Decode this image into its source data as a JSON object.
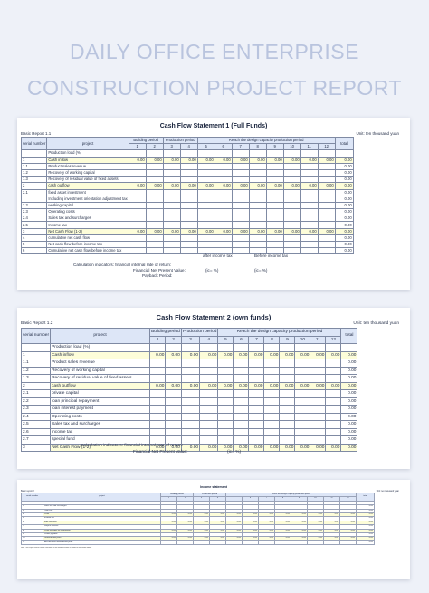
{
  "page": {
    "title_line1": "DAILY OFFICE ENTERPRISE",
    "title_line2": "CONSTRUCTION PROJECT REPORT"
  },
  "sheet1": {
    "title": "Cash Flow Statement 1 (Full Funds)",
    "report_no": "Basic Report 1.1",
    "unit": "Unit: ten thousand yuan",
    "header": {
      "serial": "serial number",
      "project": "project",
      "building": "Building period",
      "production": "Production period",
      "design": "Reach the design capacity production period",
      "total": "total",
      "periods": [
        "1",
        "2",
        "3",
        "4",
        "5",
        "6",
        "7",
        "8",
        "9",
        "10",
        "11",
        "12"
      ]
    },
    "rows": [
      {
        "sn": "",
        "name": "Production load (%)",
        "hl": false,
        "vals": []
      },
      {
        "sn": "1",
        "name": "Cash inflow",
        "hl": true,
        "vals": [
          "0.00",
          "0.00",
          "0.00",
          "0.00",
          "0.00",
          "0.00",
          "0.00",
          "0.00",
          "0.00",
          "0.00",
          "0.00",
          "0.00"
        ],
        "total": "0.00"
      },
      {
        "sn": "1.1",
        "name": "Product sales revenue",
        "hl": false,
        "vals": [],
        "total": "0.00"
      },
      {
        "sn": "1.2",
        "name": "Recovery of working capital",
        "hl": false,
        "vals": [],
        "total": "0.00"
      },
      {
        "sn": "1.3",
        "name": "Recovery of residual value of fixed assets",
        "hl": false,
        "vals": [],
        "total": "0.00"
      },
      {
        "sn": "2",
        "name": "cash outflow",
        "hl": true,
        "vals": [
          "0.00",
          "0.00",
          "0.00",
          "0.00",
          "0.00",
          "0.00",
          "0.00",
          "0.00",
          "0.00",
          "0.00",
          "0.00",
          "0.00"
        ],
        "total": "0.00"
      },
      {
        "sn": "2.1",
        "name": "fixed asset investment",
        "hl": false,
        "vals": [],
        "total": "0.00"
      },
      {
        "sn": "",
        "name": "Including investment orientation adjustment tax",
        "hl": false,
        "vals": [],
        "total": "0.00"
      },
      {
        "sn": "2.2",
        "name": "working capital",
        "hl": false,
        "vals": [],
        "total": "0.00"
      },
      {
        "sn": "2.3",
        "name": "Operating costs",
        "hl": false,
        "vals": [],
        "total": "0.00"
      },
      {
        "sn": "2.4",
        "name": "Sales tax and surcharges",
        "hl": false,
        "vals": [],
        "total": "0.00"
      },
      {
        "sn": "2.5",
        "name": "Income tax",
        "hl": false,
        "vals": [],
        "total": "0.00"
      },
      {
        "sn": "3",
        "name": "Net Cash Flow (1-2)",
        "hl": true,
        "vals": [
          "0.00",
          "0.00",
          "0.00",
          "0.00",
          "0.00",
          "0.00",
          "0.00",
          "0.00",
          "0.00",
          "0.00",
          "0.00",
          "0.00"
        ],
        "total": "0.00"
      },
      {
        "sn": "4",
        "name": "cumulative net cash flow",
        "hl": false,
        "vals": [],
        "total": "0.00"
      },
      {
        "sn": "5",
        "name": "Net cash flow before income tax",
        "hl": false,
        "vals": [],
        "total": "0.00"
      },
      {
        "sn": "6",
        "name": "Cumulative net cash flow before income tax",
        "hl": false,
        "vals": [],
        "total": "0.00"
      }
    ],
    "calc": {
      "after_tax": "after income tax",
      "before_tax": "Before income tax",
      "irr_label": "Calculation indicators: financial internal rate of return:",
      "npv_label": "Financial Net Present Value:",
      "pp_label": "Payback Period:",
      "ic1": "(ic=  %)",
      "ic2": "(ic=  %)"
    }
  },
  "sheet2": {
    "title": "Cash Flow Statement 2 (own funds)",
    "report_no": "Basic Report 1.2",
    "unit": "Unit: ten thousand yuan",
    "header": {
      "serial": "serial number",
      "project": "project",
      "building": "Building period",
      "production": "Production period",
      "design": "Reach the design capacity production period",
      "total": "total",
      "periods": [
        "1",
        "2",
        "3",
        "4",
        "5",
        "6",
        "7",
        "8",
        "9",
        "10",
        "11",
        "12"
      ]
    },
    "rows": [
      {
        "sn": "",
        "name": "Production load (%)",
        "hl": false,
        "vals": []
      },
      {
        "sn": "1",
        "name": "Cash inflow",
        "hl": true,
        "vals": [
          "0.00",
          "0.00",
          "0.00",
          "0.00",
          "0.00",
          "0.00",
          "0.00",
          "0.00",
          "0.00",
          "0.00",
          "0.00",
          "0.00"
        ],
        "total": "0.00"
      },
      {
        "sn": "1.1",
        "name": "Product sales revenue",
        "hl": false,
        "vals": [],
        "total": "0.00"
      },
      {
        "sn": "1.2",
        "name": "Recovery of working capital",
        "hl": false,
        "vals": [],
        "total": "0.00"
      },
      {
        "sn": "1.3",
        "name": "Recovery of residual value of fixed assets",
        "hl": false,
        "vals": [],
        "total": "0.00"
      },
      {
        "sn": "2",
        "name": "cash outflow",
        "hl": true,
        "vals": [
          "0.00",
          "0.00",
          "0.00",
          "0.00",
          "0.00",
          "0.00",
          "0.00",
          "0.00",
          "0.00",
          "0.00",
          "0.00",
          "0.00"
        ],
        "total": "0.00"
      },
      {
        "sn": "2.1",
        "name": "private capital",
        "hl": false,
        "vals": [],
        "total": "0.00"
      },
      {
        "sn": "2.2",
        "name": "loan principal repayment",
        "hl": false,
        "vals": [],
        "total": "0.00"
      },
      {
        "sn": "2.3",
        "name": "loan interest payment",
        "hl": false,
        "vals": [],
        "total": "0.00"
      },
      {
        "sn": "2.4",
        "name": "Operating costs",
        "hl": false,
        "vals": [],
        "total": "0.00"
      },
      {
        "sn": "2.5",
        "name": "Sales tax and surcharges",
        "hl": false,
        "vals": [],
        "total": "0.00"
      },
      {
        "sn": "2.6",
        "name": "income tax",
        "hl": false,
        "vals": [],
        "total": "0.00"
      },
      {
        "sn": "2.7",
        "name": "special fund",
        "hl": false,
        "vals": [],
        "total": "0.00"
      },
      {
        "sn": "3",
        "name": "Net Cash Flow (1-2)",
        "hl": true,
        "vals": [
          "0.00",
          "0.00",
          "0.00",
          "0.00",
          "0.00",
          "0.00",
          "0.00",
          "0.00",
          "0.00",
          "0.00",
          "0.00",
          "0.00"
        ],
        "total": "0.00"
      }
    ],
    "calc": {
      "irr_label": "Calculation indicators: financial internal rate of return:",
      "npv_label": "Financial Net Present Value:",
      "ic": "(ic=  %)"
    }
  },
  "sheet3": {
    "title": "Income statement",
    "report_no": "Basic report 2",
    "unit": "Unit: ten thousand yuan",
    "header": {
      "serial": "serial number",
      "project": "project",
      "building": "Building period",
      "production": "Production period",
      "design": "Reach the design capacity production period",
      "total": "total",
      "periods": [
        "1",
        "2",
        "3",
        "4",
        "5",
        "6",
        "7",
        "8",
        "9",
        "10",
        "11",
        "12"
      ]
    },
    "rows": [
      {
        "sn": "1",
        "name": "Product sales revenue",
        "hl": false,
        "vals": [],
        "total": "0.00"
      },
      {
        "sn": "2",
        "name": "Sales tax and surcharges",
        "hl": false,
        "vals": [],
        "total": "0.00"
      },
      {
        "sn": "3",
        "name": "Total cost",
        "hl": false,
        "vals": [],
        "total": "0.00"
      },
      {
        "sn": "4",
        "name": "Profit",
        "hl": true,
        "vals": [
          "0.00",
          "0.00",
          "0.00",
          "0.00",
          "0.00",
          "0.00",
          "0.00",
          "0.00",
          "0.00",
          "0.00",
          "0.00",
          "0.00"
        ],
        "total": "0.00"
      },
      {
        "sn": "5",
        "name": "Income tax",
        "hl": false,
        "vals": [],
        "total": "0.00"
      },
      {
        "sn": "6",
        "name": "after-tax profit",
        "hl": true,
        "vals": [
          "0.00",
          "0.00",
          "0.00",
          "0.00",
          "0.00",
          "0.00",
          "0.00",
          "0.00",
          "0.00",
          "0.00",
          "0.00",
          "0.00"
        ],
        "total": "0.00"
      },
      {
        "sn": "7",
        "name": "Surplus reserve",
        "hl": false,
        "vals": [],
        "total": "0.00"
      },
      {
        "sn": "8",
        "name": "Profit available for distribution",
        "hl": true,
        "vals": [
          "0.00",
          "0.00",
          "0.00",
          "0.00",
          "0.00",
          "0.00",
          "0.00",
          "0.00",
          "0.00",
          "0.00",
          "0.00",
          "0.00"
        ],
        "total": "0.00"
      },
      {
        "sn": "9",
        "name": "Profits payable",
        "hl": false,
        "vals": [],
        "total": "0.00"
      },
      {
        "sn": "10",
        "name": "Undistributed profit",
        "hl": true,
        "vals": [
          "0.00",
          "0.00",
          "0.00",
          "0.00",
          "0.00",
          "0.00",
          "0.00",
          "0.00",
          "0.00",
          "0.00",
          "0.00",
          "0.00"
        ],
        "total": "0.00"
      },
      {
        "sn": "11",
        "name": "Accumulated undistributed profit",
        "hl": false,
        "vals": [],
        "total": "0.00"
      }
    ],
    "note": "Note: The surplus reserve can be calculated as the taxable income as shown in the column above."
  }
}
